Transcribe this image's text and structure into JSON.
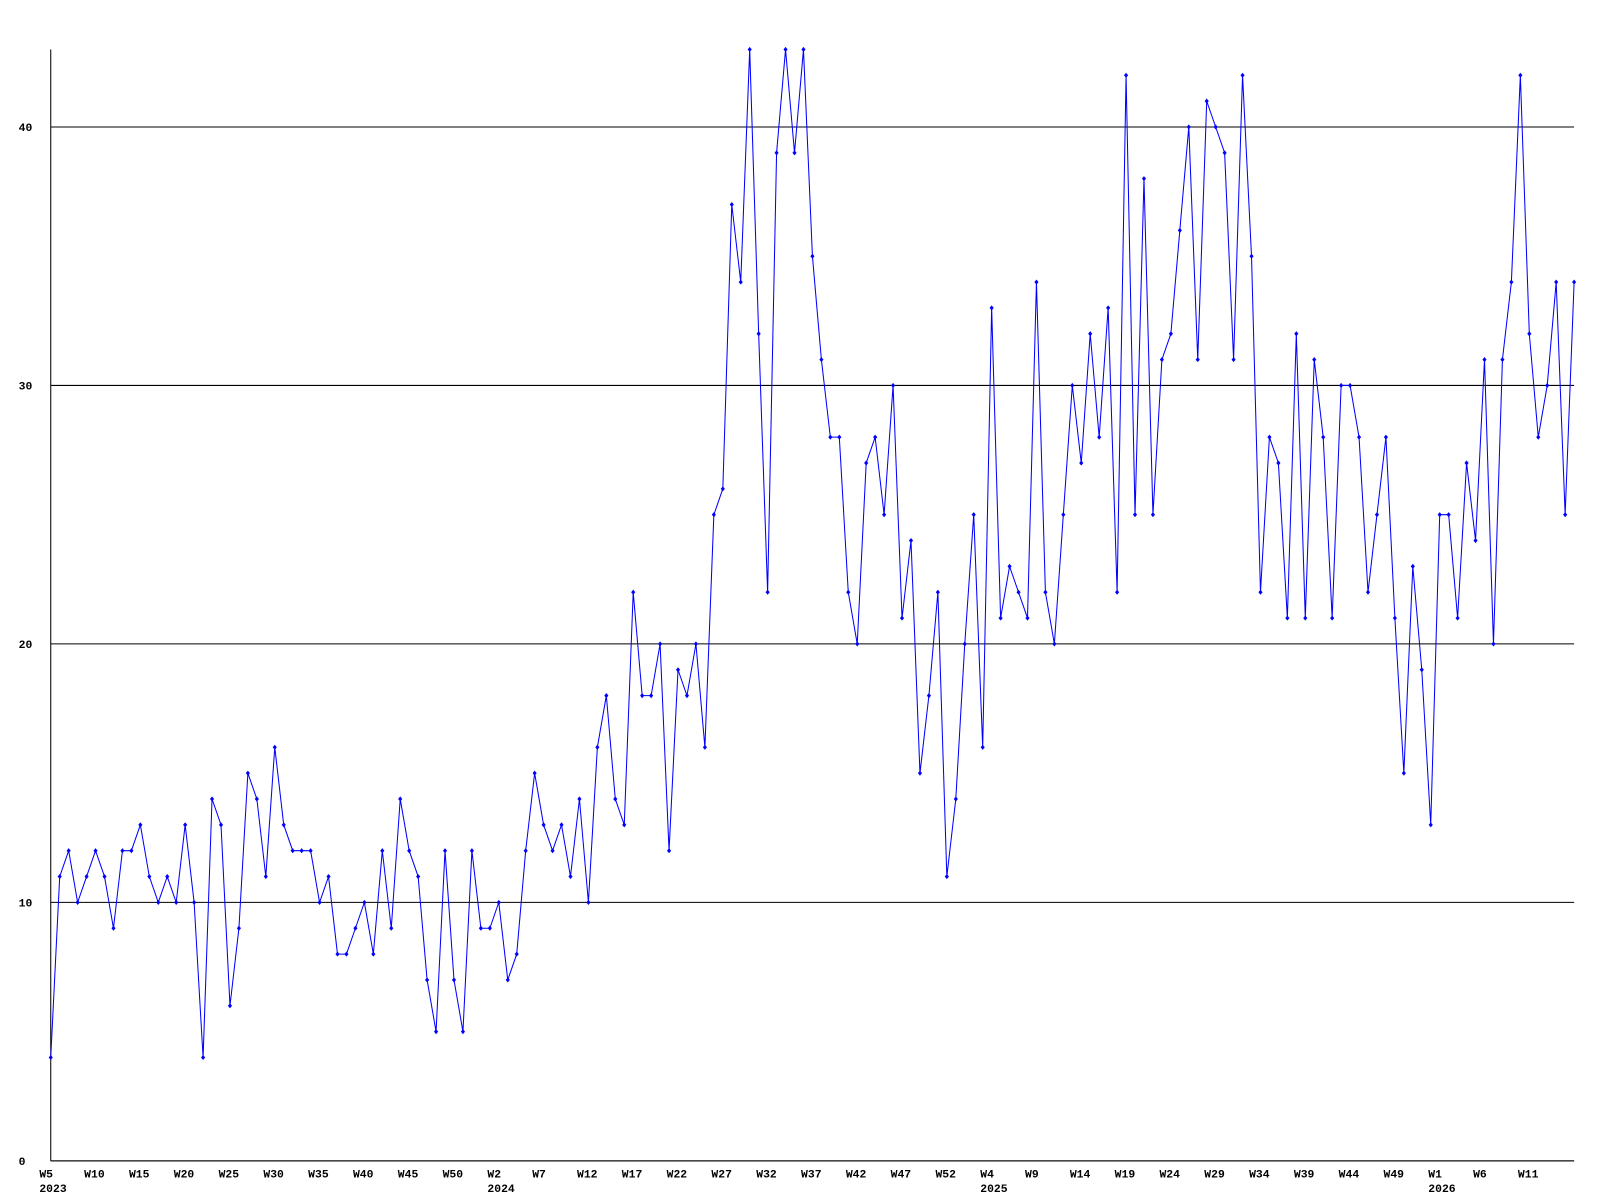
{
  "chart_data": {
    "type": "line",
    "categories": [
      "W5",
      null,
      null,
      null,
      null,
      "W10",
      null,
      null,
      null,
      null,
      "W15",
      null,
      null,
      null,
      null,
      "W20",
      null,
      null,
      null,
      null,
      "W25",
      null,
      null,
      null,
      null,
      "W30",
      null,
      null,
      null,
      null,
      "W35",
      null,
      null,
      null,
      null,
      "W40",
      null,
      null,
      null,
      null,
      "W45",
      null,
      null,
      null,
      null,
      "W50",
      null,
      null,
      null,
      null,
      "W2",
      null,
      null,
      null,
      null,
      "W7",
      null,
      null,
      null,
      null,
      "W12",
      null,
      null,
      null,
      null,
      "W17",
      null,
      null,
      null,
      null,
      "W22",
      null,
      null,
      null,
      null,
      "W27",
      null,
      null,
      null,
      null,
      "W32",
      null,
      null,
      null,
      null,
      "W37",
      null,
      null,
      null,
      null,
      "W42",
      null,
      null,
      null,
      null,
      "W47",
      null,
      null,
      null,
      null,
      "W52",
      null,
      null,
      null,
      null,
      "W4",
      null,
      null,
      null,
      null,
      "W9",
      null,
      null,
      null,
      null,
      "W14",
      null,
      null,
      null,
      null,
      "W19",
      null,
      null,
      null,
      null,
      "W24",
      null,
      null,
      null,
      null,
      "W29",
      null,
      null,
      null,
      null,
      "W34",
      null,
      null,
      null,
      null,
      "W39",
      null,
      null,
      null,
      null,
      "W44",
      null,
      null,
      null,
      null,
      "W49",
      null,
      null,
      null,
      null,
      "W1",
      null,
      null,
      null,
      null,
      "W6",
      null,
      null,
      null,
      null,
      "W11",
      null,
      null,
      null,
      null,
      null
    ],
    "category_years": [
      "2023",
      null,
      null,
      null,
      null,
      null,
      null,
      null,
      null,
      null,
      null,
      null,
      null,
      null,
      null,
      null,
      null,
      null,
      null,
      null,
      null,
      null,
      null,
      null,
      null,
      null,
      null,
      null,
      null,
      null,
      null,
      null,
      null,
      null,
      null,
      null,
      null,
      null,
      null,
      null,
      null,
      null,
      null,
      null,
      null,
      null,
      null,
      null,
      null,
      null,
      "2024",
      null,
      null,
      null,
      null,
      null,
      null,
      null,
      null,
      null,
      null,
      null,
      null,
      null,
      null,
      null,
      null,
      null,
      null,
      null,
      null,
      null,
      null,
      null,
      null,
      null,
      null,
      null,
      null,
      null,
      null,
      null,
      null,
      null,
      null,
      null,
      null,
      null,
      null,
      null,
      null,
      null,
      null,
      null,
      null,
      null,
      null,
      null,
      null,
      null,
      null,
      null,
      null,
      null,
      null,
      "2025",
      null,
      null,
      null,
      null,
      null,
      null,
      null,
      null,
      null,
      null,
      null,
      null,
      null,
      null,
      null,
      null,
      null,
      null,
      null,
      null,
      null,
      null,
      null,
      null,
      null,
      null,
      null,
      null,
      null,
      null,
      null,
      null,
      null,
      null,
      null,
      null,
      null,
      null,
      null,
      null,
      null,
      null,
      null,
      null,
      null,
      null,
      null,
      null,
      null,
      "2026",
      null,
      null,
      null,
      null,
      null,
      null,
      null,
      null,
      null,
      null,
      null,
      null,
      null,
      null,
      null
    ],
    "series": [
      {
        "color": "#0000ff",
        "values": [
          4,
          11,
          12,
          10,
          11,
          12,
          11,
          9,
          12,
          12,
          13,
          11,
          10,
          11,
          10,
          13,
          10,
          4,
          14,
          13,
          6,
          9,
          15,
          14,
          11,
          16,
          13,
          12,
          12,
          12,
          10,
          11,
          8,
          8,
          9,
          10,
          8,
          12,
          9,
          14,
          12,
          11,
          7,
          5,
          12,
          7,
          5,
          12,
          9,
          9,
          10,
          7,
          8,
          12,
          15,
          13,
          12,
          13,
          11,
          14,
          10,
          16,
          18,
          14,
          13,
          22,
          18,
          18,
          20,
          12,
          19,
          18,
          20,
          16,
          25,
          26,
          37,
          34,
          43,
          32,
          22,
          39,
          43,
          39,
          43,
          35,
          31,
          28,
          28,
          22,
          20,
          27,
          28,
          25,
          30,
          21,
          24,
          15,
          18,
          22,
          11,
          14,
          20,
          25,
          16,
          33,
          21,
          23,
          22,
          21,
          34,
          22,
          20,
          25,
          30,
          27,
          32,
          28,
          33,
          22,
          42,
          25,
          38,
          25,
          31,
          32,
          36,
          40,
          31,
          41,
          40,
          39,
          31,
          42,
          35,
          22,
          28,
          27,
          21,
          32,
          21,
          31,
          28,
          21,
          30,
          30,
          28,
          22,
          25,
          28,
          21,
          15,
          23,
          19,
          13,
          25,
          25,
          21,
          27,
          24,
          31,
          20,
          31,
          34,
          42,
          32,
          28,
          30,
          34,
          25,
          34
        ]
      }
    ],
    "ylim": [
      0,
      43
    ],
    "yticks": [
      0,
      10,
      20,
      30,
      40
    ],
    "grid": true
  }
}
